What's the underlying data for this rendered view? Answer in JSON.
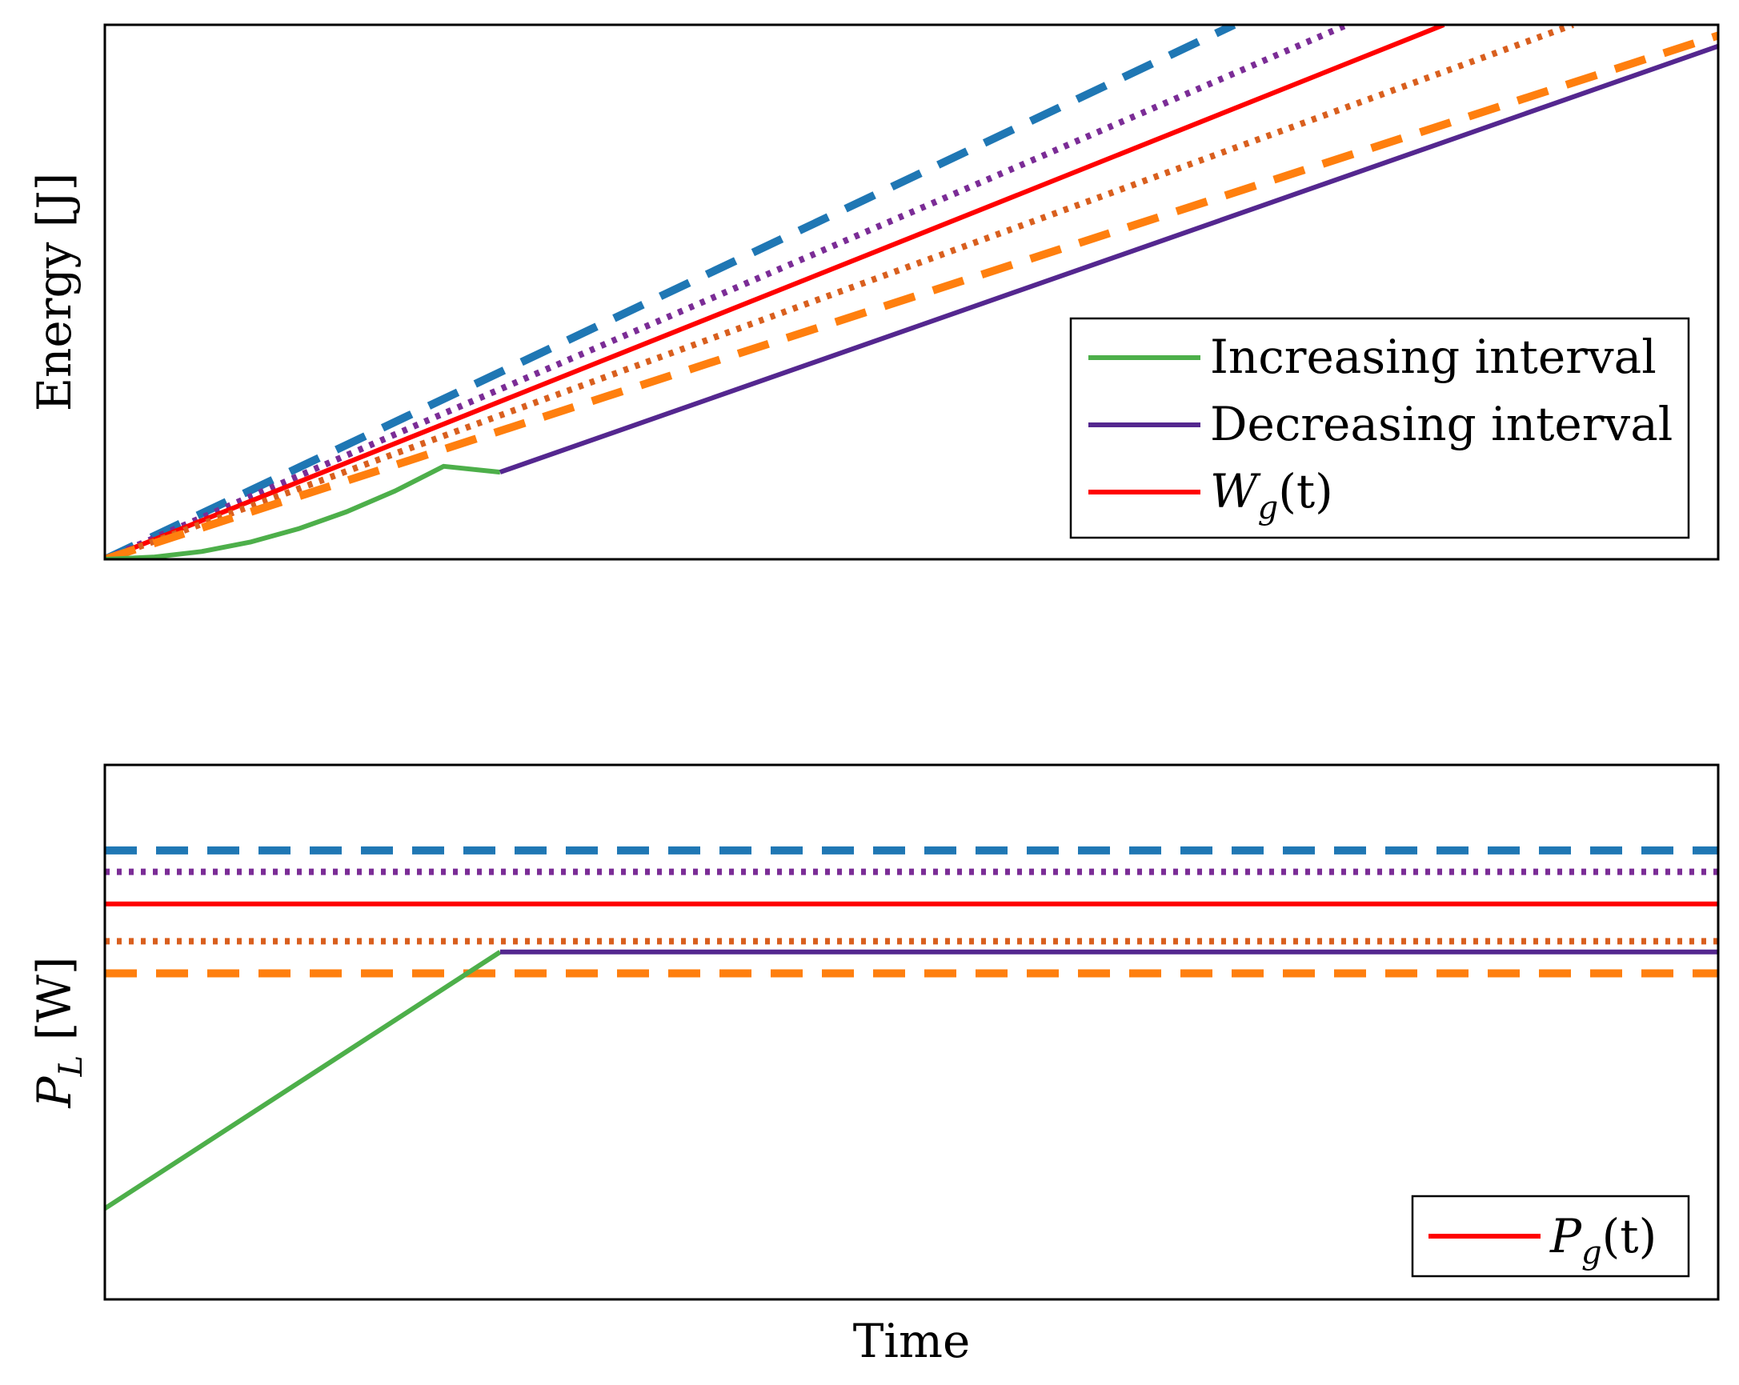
{
  "chart_data": [
    {
      "type": "line",
      "panel": "top",
      "ylabel": "Energy [J]",
      "xlabel": "",
      "xlim": [
        0,
        1
      ],
      "ylim": [
        0,
        1
      ],
      "ticks": "none",
      "legend_position": "lower-right",
      "legend": [
        {
          "label": "Increasing interval",
          "color": "#4daf4a",
          "style": "solid"
        },
        {
          "label": "Decreasing interval",
          "color": "#54278f",
          "style": "solid"
        },
        {
          "label": "W",
          "sub": "g",
          "suffix": "(t)",
          "color": "#ff0000",
          "style": "solid"
        }
      ],
      "series": [
        {
          "name": "upper-dashed",
          "color": "#1f77b4",
          "style": "dashed",
          "x": [
            0,
            0.7
          ],
          "y": [
            0,
            1.0
          ]
        },
        {
          "name": "upper-dotted",
          "color": "#7b2c96",
          "style": "dotted",
          "x": [
            0,
            0.77
          ],
          "y": [
            0,
            1.0
          ]
        },
        {
          "name": "W_g(t)",
          "color": "#ff0000",
          "style": "solid",
          "x": [
            0,
            0.83
          ],
          "y": [
            0,
            1.0
          ]
        },
        {
          "name": "lower-dotted",
          "color": "#d95f1e",
          "style": "dotted",
          "x": [
            0,
            0.91
          ],
          "y": [
            0,
            1.0
          ]
        },
        {
          "name": "lower-dashed",
          "color": "#ff7f0e",
          "style": "dashed",
          "x": [
            0,
            1.0
          ],
          "y": [
            0,
            0.98
          ]
        },
        {
          "name": "Increasing interval",
          "color": "#4daf4a",
          "style": "solid",
          "x": [
            0,
            0.03,
            0.06,
            0.09,
            0.12,
            0.15,
            0.18,
            0.21,
            0.245
          ],
          "y": [
            0,
            0.004,
            0.0145,
            0.032,
            0.057,
            0.089,
            0.128,
            0.174,
            0.163
          ]
        },
        {
          "name": "Decreasing interval",
          "color": "#54278f",
          "style": "solid",
          "x": [
            0.245,
            1.0
          ],
          "y": [
            0.163,
            0.96
          ]
        }
      ]
    },
    {
      "type": "line",
      "panel": "bottom",
      "ylabel": "P",
      "ylabel_sub": "L",
      "ylabel_suffix": " [W]",
      "xlabel": "Time",
      "xlim": [
        0,
        1
      ],
      "ylim": [
        0,
        1
      ],
      "ticks": "none",
      "legend_position": "lower-right",
      "legend": [
        {
          "label": "P",
          "sub": "g",
          "suffix": "(t)",
          "color": "#ff0000",
          "style": "solid"
        }
      ],
      "series": [
        {
          "name": "upper-dashed",
          "color": "#1f77b4",
          "style": "dashed",
          "x": [
            0,
            1
          ],
          "y": [
            0.84,
            0.84
          ]
        },
        {
          "name": "upper-dotted",
          "color": "#7b2c96",
          "style": "dotted",
          "x": [
            0,
            1
          ],
          "y": [
            0.8,
            0.8
          ]
        },
        {
          "name": "P_g(t)",
          "color": "#ff0000",
          "style": "solid",
          "x": [
            0,
            1
          ],
          "y": [
            0.74,
            0.74
          ]
        },
        {
          "name": "lower-dotted",
          "color": "#d95f1e",
          "style": "dotted",
          "x": [
            0,
            1
          ],
          "y": [
            0.67,
            0.67
          ]
        },
        {
          "name": "lower-dashed",
          "color": "#ff7f0e",
          "style": "dashed",
          "x": [
            0,
            1
          ],
          "y": [
            0.61,
            0.61
          ]
        },
        {
          "name": "Increasing interval",
          "color": "#4daf4a",
          "style": "solid",
          "x": [
            0,
            0.245
          ],
          "y": [
            0.17,
            0.65
          ]
        },
        {
          "name": "Decreasing interval",
          "color": "#54278f",
          "style": "solid",
          "x": [
            0.245,
            1
          ],
          "y": [
            0.65,
            0.65
          ]
        }
      ]
    }
  ]
}
